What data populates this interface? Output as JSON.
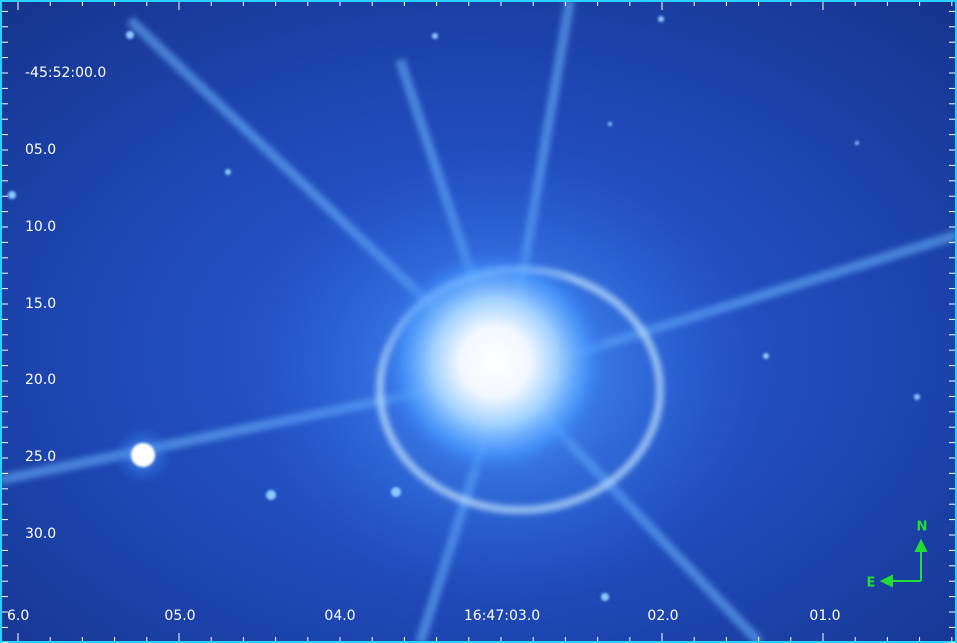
{
  "axes": {
    "y_labels": [
      "-45:52:00.0",
      "05.0",
      "10.0",
      "15.0",
      "20.0",
      "25.0",
      "30.0"
    ],
    "x_labels": [
      "6.0",
      "05.0",
      "04.0",
      "16:47:03.0",
      "02.0",
      "01.0"
    ]
  },
  "compass": {
    "north": "N",
    "east": "E"
  }
}
